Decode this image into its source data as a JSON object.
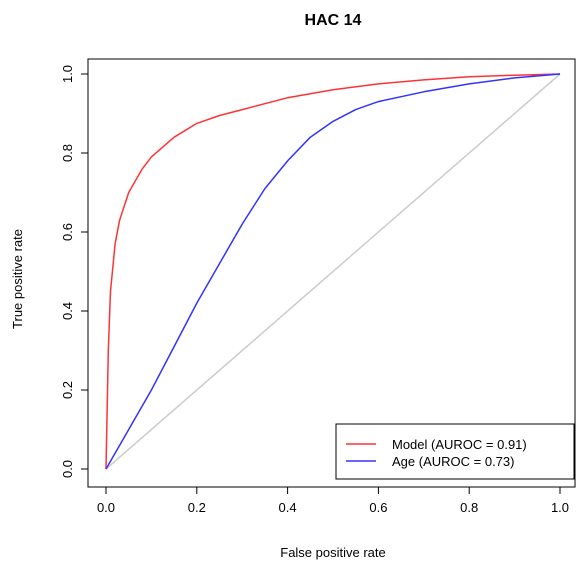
{
  "chart_data": {
    "type": "line",
    "title": "HAC 14",
    "xlabel": "False positive rate",
    "ylabel": "True positive rate",
    "xlim": [
      0,
      1
    ],
    "ylim": [
      0,
      1
    ],
    "xticks": [
      "0.0",
      "0.2",
      "0.4",
      "0.6",
      "0.8",
      "1.0"
    ],
    "yticks": [
      "0.0",
      "0.2",
      "0.4",
      "0.6",
      "0.8",
      "1.0"
    ],
    "legend_position": "bottom-right",
    "grid": false,
    "reference_line": {
      "x": [
        0,
        1
      ],
      "y": [
        0,
        1
      ],
      "color": "#cccccc"
    },
    "series": [
      {
        "name": "Model (AUROC = 0.91)",
        "color": "#ff3333",
        "x": [
          0,
          0.005,
          0.01,
          0.02,
          0.03,
          0.05,
          0.08,
          0.1,
          0.15,
          0.2,
          0.25,
          0.3,
          0.4,
          0.5,
          0.6,
          0.7,
          0.8,
          0.9,
          1.0
        ],
        "y": [
          0,
          0.3,
          0.45,
          0.57,
          0.63,
          0.7,
          0.76,
          0.79,
          0.84,
          0.875,
          0.895,
          0.91,
          0.94,
          0.96,
          0.975,
          0.985,
          0.993,
          0.997,
          1.0
        ]
      },
      {
        "name": "Age (AUROC = 0.73)",
        "color": "#3333ff",
        "x": [
          0,
          0.05,
          0.1,
          0.15,
          0.2,
          0.3,
          0.35,
          0.4,
          0.45,
          0.5,
          0.55,
          0.6,
          0.7,
          0.8,
          0.9,
          1.0
        ],
        "y": [
          0,
          0.1,
          0.2,
          0.31,
          0.42,
          0.62,
          0.71,
          0.78,
          0.84,
          0.88,
          0.91,
          0.93,
          0.955,
          0.975,
          0.99,
          1.0
        ]
      }
    ]
  }
}
